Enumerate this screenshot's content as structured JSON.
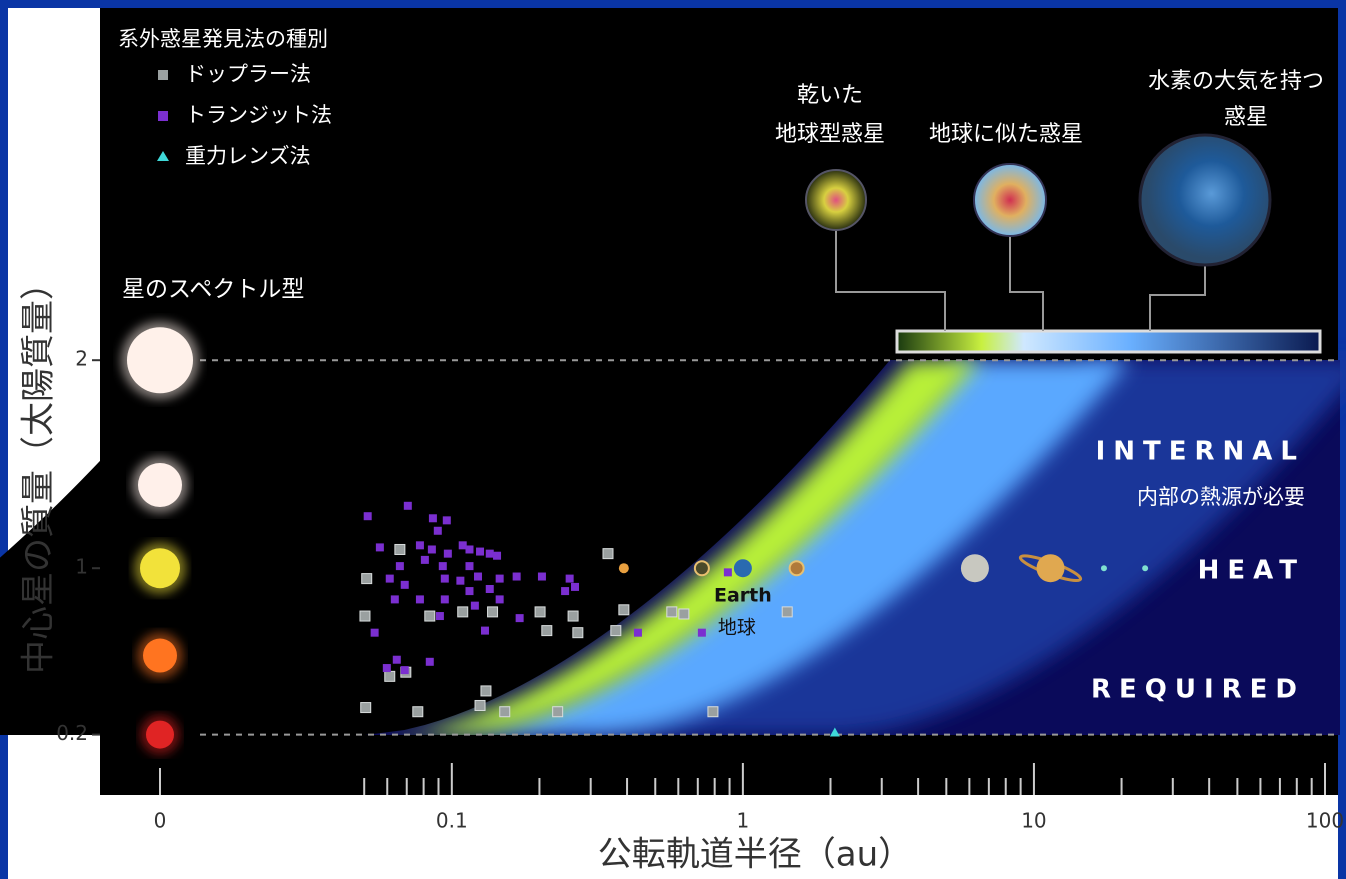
{
  "chart_data": {
    "type": "scatter",
    "legend_title": "系外惑星発見法の種別",
    "x_label": "公転軌道半径（au）",
    "y_label": "中心星の質量（太陽質量）",
    "x_log": true,
    "xlim": [
      0.04,
      100
    ],
    "xticks": [
      0.1,
      1,
      10,
      100
    ],
    "xminorticks": [
      0.05,
      0.06,
      0.07,
      0.08,
      0.09,
      0.2,
      0.3,
      0.4,
      0.5,
      0.6,
      0.7,
      0.8,
      0.9,
      2,
      3,
      4,
      5,
      6,
      7,
      8,
      9,
      20,
      30,
      40,
      50,
      60,
      70,
      80,
      90
    ],
    "ylim": [
      -0.1,
      3.7
    ],
    "yticks": [
      0.2,
      1,
      2
    ],
    "dashed_gridlines": [
      0.2,
      2
    ],
    "series": [
      {
        "name": "ドップラー法",
        "color": "#9aa0a0",
        "marker": "square",
        "x": [
          0.051,
          0.0663,
          0.0503,
          0.084,
          0.109,
          0.138,
          0.201,
          0.261,
          0.212,
          0.271,
          0.344,
          0.39,
          0.366,
          0.57,
          0.627,
          1.42,
          0.0612,
          0.0695,
          0.131,
          0.125,
          0.152,
          0.0506,
          0.0764,
          0.231,
          0.789
        ],
        "y": [
          0.95,
          1.09,
          0.77,
          0.77,
          0.79,
          0.79,
          0.79,
          0.77,
          0.7,
          0.69,
          1.07,
          0.8,
          0.7,
          0.79,
          0.78,
          0.79,
          0.48,
          0.5,
          0.41,
          0.34,
          0.31,
          0.33,
          0.31,
          0.31,
          0.31
        ]
      },
      {
        "name": "トランジット法",
        "color": "#7b2fd0",
        "marker": "square",
        "x": [
          0.0514,
          0.0706,
          0.0861,
          0.0961,
          0.0895,
          0.0566,
          0.0777,
          0.0854,
          0.0969,
          0.109,
          0.115,
          0.125,
          0.135,
          0.143,
          0.0663,
          0.0808,
          0.0931,
          0.115,
          0.123,
          0.146,
          0.167,
          0.204,
          0.254,
          0.265,
          0.0612,
          0.0689,
          0.0946,
          0.107,
          0.115,
          0.135,
          0.245,
          0.0637,
          0.0777,
          0.0946,
          0.12,
          0.146,
          0.0543,
          0.091,
          0.13,
          0.171,
          0.0647,
          0.0689,
          0.084,
          0.0598,
          0.436,
          0.723,
          0.888
        ],
        "y": [
          1.25,
          1.3,
          1.24,
          1.23,
          1.18,
          1.1,
          1.11,
          1.09,
          1.07,
          1.11,
          1.09,
          1.08,
          1.07,
          1.06,
          1.01,
          1.04,
          1.01,
          1.01,
          0.96,
          0.95,
          0.96,
          0.96,
          0.95,
          0.91,
          0.95,
          0.92,
          0.95,
          0.94,
          0.89,
          0.9,
          0.89,
          0.85,
          0.85,
          0.85,
          0.82,
          0.85,
          0.69,
          0.77,
          0.7,
          0.76,
          0.56,
          0.51,
          0.55,
          0.52,
          0.69,
          0.69,
          0.98
        ]
      },
      {
        "name": "重力レンズ法",
        "color": "#3fd8d8",
        "marker": "triangle",
        "x": [
          2.07
        ],
        "y": [
          0.21
        ]
      }
    ],
    "stars": {
      "label": "星のスペクトル型",
      "tick_label": "0",
      "masses": [
        2,
        1.4,
        1,
        0.58,
        0.2
      ],
      "colors": [
        "#fff1ea",
        "#fff0ea",
        "#f2e23a",
        "#ff7420",
        "#e02424"
      ]
    },
    "solar_system": {
      "x": [
        0.39,
        0.723,
        1,
        1.53,
        6.27,
        11.4,
        17.4,
        24.1
      ],
      "y": [
        1,
        1,
        1,
        1,
        1,
        1,
        1,
        1
      ],
      "colors": [
        "#e8a040",
        "#4a4a2a",
        "#2a6ab0",
        "#b07a3a",
        "#c8c8c0",
        "#e0a850",
        "#7fe0d0",
        "#7fe0d0"
      ],
      "earth_label": [
        "Earth",
        "地球"
      ]
    },
    "zones": [
      [
        "乾いた",
        "地球型惑星"
      ],
      [
        "地球に似た惑星"
      ],
      [
        "水素の大気を持つ",
        "惑星"
      ]
    ],
    "annotations": [
      "INTERNAL",
      "内部の熱源が必要",
      "HEAT",
      "REQUIRED"
    ]
  }
}
